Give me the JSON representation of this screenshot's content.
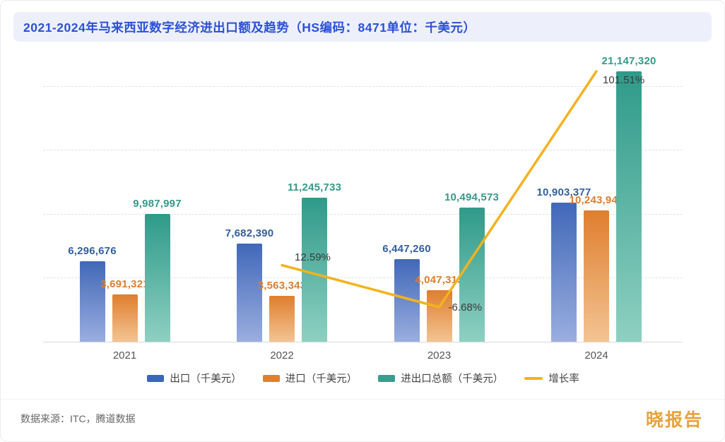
{
  "header": {
    "title": "2021-2024年马来西亚数字经济进出口额及趋势（HS编码：8471单位：千美元）"
  },
  "footer": {
    "source": "数据来源：ITC，腾道数据",
    "logo": "晓报告"
  },
  "colors": {
    "title": "#2B50D8",
    "header_bg": "#EDF0FB",
    "export_top": "#4168B8",
    "export_bottom": "#9AAEDF",
    "import_top": "#DF7E2E",
    "import_bottom": "#F3C493",
    "total_top": "#2F9A89",
    "total_bottom": "#8ED0C2",
    "growth_line": "#F2B31E",
    "logo_gold": "#E8A23C"
  },
  "chart_data": {
    "type": "bar",
    "title": "2021-2024年马来西亚数字经济进出口额及趋势（HS编码：8471单位：千美元）",
    "categories": [
      "2021",
      "2022",
      "2023",
      "2024"
    ],
    "series": [
      {
        "name": "出口（千美元）",
        "values": [
          6296676,
          7682390,
          6447260,
          10903377
        ],
        "labels": [
          "6,296,676",
          "7,682,390",
          "6,447,260",
          "10,903,377"
        ],
        "color": "#3A67B8",
        "color_top": "#4168B8",
        "color_bottom": "#9AAEDF",
        "label_color": "#33609F"
      },
      {
        "name": "进口（千美元）",
        "values": [
          3691321,
          3563343,
          4047313,
          10243943
        ],
        "labels": [
          "3,691,321",
          "3,563,343",
          "4,047,313",
          "10,243,943"
        ],
        "color": "#E0802C",
        "color_top": "#DF7E2E",
        "color_bottom": "#F3C493",
        "label_color": "#DD7E2E"
      },
      {
        "name": "进出口总额（千美元）",
        "values": [
          9987997,
          11245733,
          10494573,
          21147320
        ],
        "labels": [
          "9,987,997",
          "11,245,733",
          "10,494,573",
          "21,147,320"
        ],
        "color": "#3C9D8D",
        "color_top": "#2F9A89",
        "color_bottom": "#8ED0C2",
        "label_color": "#36998A"
      }
    ],
    "line_series": {
      "name": "增长率",
      "x": [
        "2022",
        "2023",
        "2024"
      ],
      "values": [
        12.59,
        -6.68,
        101.51
      ],
      "labels": [
        "12.59%",
        "-6.68%",
        "101.51%"
      ],
      "color": "#F2B31E"
    },
    "ylim": [
      0,
      21147320
    ],
    "grid": "dashed-horizontal",
    "legend_position": "bottom"
  }
}
